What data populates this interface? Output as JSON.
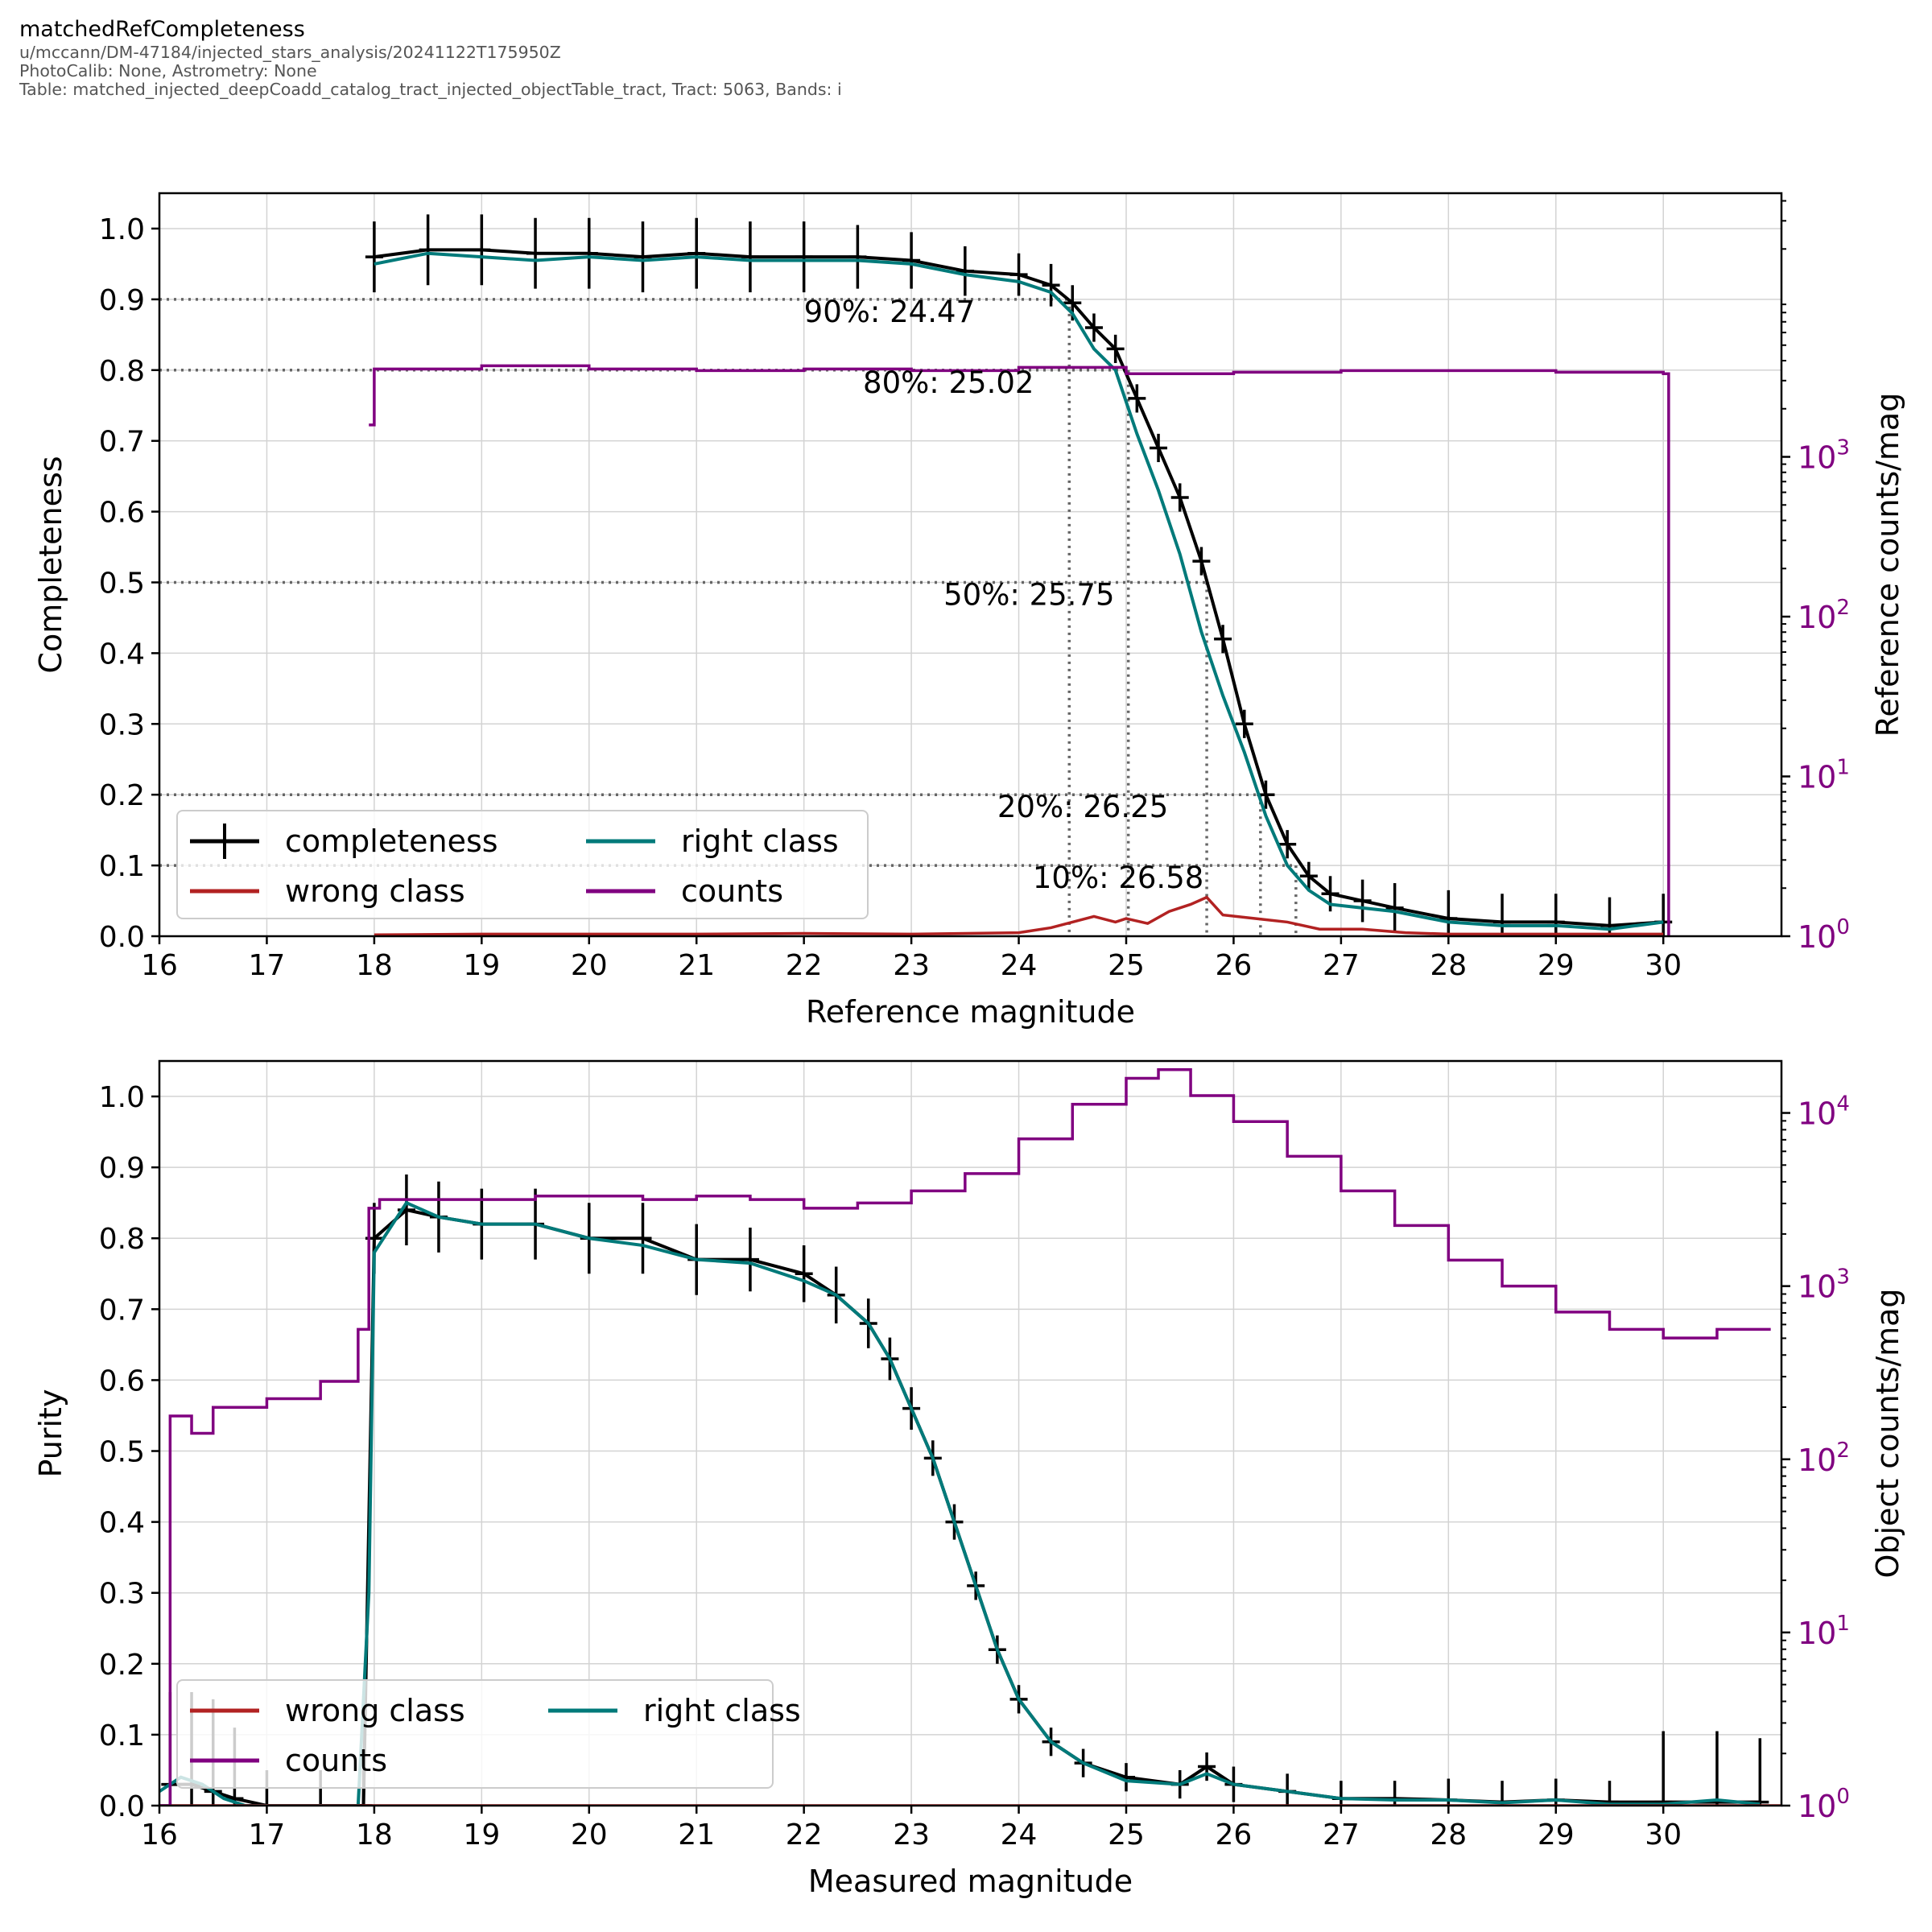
{
  "header": {
    "title": "matchedRefCompleteness",
    "lines": [
      "u/mccann/DM-47184/injected_stars_analysis/20241122T175950Z",
      "PhotoCalib: None, Astrometry: None",
      "Table: matched_injected_deepCoadd_catalog_tract_injected_objectTable_tract, Tract: 5063, Bands: i"
    ]
  },
  "colors": {
    "completeness": "#000000",
    "right_class": "#007a7a",
    "wrong_class": "#b22222",
    "counts": "#800080",
    "threshold": "#666666",
    "grid": "#d3d3d3"
  },
  "chart_data": [
    {
      "type": "line",
      "xlabel": "Reference magnitude",
      "ylabel": "Completeness",
      "y2label": "Reference counts/mag",
      "xlim": [
        16,
        31.1
      ],
      "ylim": [
        0,
        1.05
      ],
      "y2lim_log10": [
        0,
        4.65
      ],
      "y2scale": "log",
      "xticks": [
        16,
        17,
        18,
        19,
        20,
        21,
        22,
        23,
        24,
        25,
        26,
        27,
        28,
        29,
        30
      ],
      "yticks": [
        0.0,
        0.1,
        0.2,
        0.3,
        0.4,
        0.5,
        0.6,
        0.7,
        0.8,
        0.9,
        1.0
      ],
      "y2ticks": [
        {
          "exp": "0",
          "log": 0
        },
        {
          "exp": "1",
          "log": 1
        },
        {
          "exp": "2",
          "log": 2
        },
        {
          "exp": "3",
          "log": 3
        }
      ],
      "grid": true,
      "legend": {
        "position": "lower-left",
        "columns": 2,
        "order": [
          "completeness",
          "right class",
          "wrong class",
          "counts"
        ]
      },
      "thresholds": [
        {
          "level": 0.9,
          "mag": 24.47,
          "label": "90%: 24.47",
          "label_x": 22.0
        },
        {
          "level": 0.8,
          "mag": 25.02,
          "label": "80%: 25.02",
          "label_x": 22.55
        },
        {
          "level": 0.5,
          "mag": 25.75,
          "label": "50%: 25.75",
          "label_x": 23.3
        },
        {
          "level": 0.2,
          "mag": 26.25,
          "label": "20%: 26.25",
          "label_x": 23.8
        },
        {
          "level": 0.1,
          "mag": 26.58,
          "label": "10%: 26.58",
          "label_x": 24.13
        }
      ],
      "series": [
        {
          "name": "completeness",
          "style": "errorbar",
          "x": [
            18.0,
            18.5,
            19.0,
            19.5,
            20.0,
            20.5,
            21.0,
            21.5,
            22.0,
            22.5,
            23.0,
            23.5,
            24.0,
            24.3,
            24.5,
            24.7,
            24.9,
            25.1,
            25.3,
            25.5,
            25.7,
            25.9,
            26.1,
            26.3,
            26.5,
            26.7,
            26.9,
            27.2,
            27.5,
            28.0,
            28.5,
            29.0,
            29.5,
            30.0
          ],
          "y": [
            0.96,
            0.97,
            0.97,
            0.965,
            0.965,
            0.96,
            0.965,
            0.96,
            0.96,
            0.96,
            0.955,
            0.94,
            0.935,
            0.92,
            0.895,
            0.86,
            0.83,
            0.76,
            0.69,
            0.62,
            0.53,
            0.42,
            0.3,
            0.2,
            0.13,
            0.085,
            0.06,
            0.05,
            0.04,
            0.025,
            0.02,
            0.02,
            0.015,
            0.02
          ],
          "yerr": [
            0.05,
            0.05,
            0.05,
            0.05,
            0.05,
            0.05,
            0.05,
            0.05,
            0.05,
            0.045,
            0.04,
            0.035,
            0.03,
            0.03,
            0.025,
            0.02,
            0.02,
            0.02,
            0.02,
            0.02,
            0.02,
            0.02,
            0.02,
            0.02,
            0.02,
            0.02,
            0.025,
            0.03,
            0.035,
            0.04,
            0.04,
            0.04,
            0.04,
            0.04
          ]
        },
        {
          "name": "right class",
          "style": "line",
          "x": [
            18.0,
            18.5,
            19.0,
            19.5,
            20.0,
            20.5,
            21.0,
            21.5,
            22.0,
            22.5,
            23.0,
            23.5,
            24.0,
            24.3,
            24.5,
            24.7,
            24.9,
            25.1,
            25.3,
            25.5,
            25.7,
            25.9,
            26.1,
            26.3,
            26.5,
            26.7,
            26.9,
            27.2,
            27.5,
            28.0,
            28.5,
            29.0,
            29.5,
            30.0
          ],
          "y": [
            0.95,
            0.965,
            0.96,
            0.955,
            0.96,
            0.955,
            0.96,
            0.955,
            0.955,
            0.955,
            0.95,
            0.935,
            0.925,
            0.91,
            0.88,
            0.83,
            0.8,
            0.71,
            0.63,
            0.54,
            0.43,
            0.34,
            0.26,
            0.17,
            0.1,
            0.065,
            0.045,
            0.04,
            0.035,
            0.02,
            0.015,
            0.015,
            0.01,
            0.02
          ]
        },
        {
          "name": "wrong class",
          "style": "line",
          "x": [
            18.0,
            19.0,
            20.0,
            21.0,
            22.0,
            23.0,
            24.0,
            24.3,
            24.5,
            24.7,
            24.9,
            25.0,
            25.2,
            25.4,
            25.6,
            25.75,
            25.9,
            26.2,
            26.5,
            26.8,
            27.2,
            27.6,
            28.0,
            29.0,
            30.0
          ],
          "y": [
            0.002,
            0.003,
            0.003,
            0.003,
            0.004,
            0.003,
            0.005,
            0.012,
            0.02,
            0.028,
            0.02,
            0.025,
            0.018,
            0.035,
            0.045,
            0.055,
            0.03,
            0.025,
            0.02,
            0.01,
            0.01,
            0.005,
            0.003,
            0.003,
            0.003
          ]
        },
        {
          "name": "counts",
          "style": "step",
          "axis": "right",
          "x": [
            17.95,
            18.0,
            19.0,
            20.0,
            21.0,
            22.0,
            23.0,
            24.0,
            25.0,
            26.0,
            27.0,
            28.0,
            29.0,
            30.0,
            30.05
          ],
          "y_log10": [
            3.2,
            3.55,
            3.57,
            3.55,
            3.54,
            3.55,
            3.54,
            3.56,
            3.52,
            3.53,
            3.54,
            3.54,
            3.53,
            3.52,
            0
          ]
        }
      ]
    },
    {
      "type": "line",
      "xlabel": "Measured magnitude",
      "ylabel": "Purity",
      "y2label": "Object counts/mag",
      "xlim": [
        16,
        31.1
      ],
      "ylim": [
        0,
        1.05
      ],
      "y2lim_log10": [
        0,
        4.3
      ],
      "y2scale": "log",
      "xticks": [
        16,
        17,
        18,
        19,
        20,
        21,
        22,
        23,
        24,
        25,
        26,
        27,
        28,
        29,
        30
      ],
      "yticks": [
        0.0,
        0.1,
        0.2,
        0.3,
        0.4,
        0.5,
        0.6,
        0.7,
        0.8,
        0.9,
        1.0
      ],
      "y2ticks": [
        {
          "exp": "0",
          "log": 0
        },
        {
          "exp": "1",
          "log": 1
        },
        {
          "exp": "2",
          "log": 2
        },
        {
          "exp": "3",
          "log": 3
        },
        {
          "exp": "4",
          "log": 4
        }
      ],
      "grid": true,
      "legend": {
        "position": "lower-left",
        "columns": 2,
        "order": [
          "wrong class",
          "right class",
          "counts"
        ]
      },
      "series": [
        {
          "name": "purity",
          "style": "errorbar",
          "x": [
            16.1,
            16.3,
            16.5,
            16.7,
            17.0,
            17.5,
            17.9,
            18.0,
            18.3,
            18.6,
            19.0,
            19.5,
            20.0,
            20.5,
            21.0,
            21.5,
            22.0,
            22.3,
            22.6,
            22.8,
            23.0,
            23.2,
            23.4,
            23.6,
            23.8,
            24.0,
            24.3,
            24.6,
            25.0,
            25.5,
            25.75,
            26.0,
            26.5,
            27.0,
            27.5,
            28.0,
            28.5,
            29.0,
            29.5,
            30.0,
            30.5,
            30.9
          ],
          "y": [
            0.03,
            0.03,
            0.02,
            0.01,
            0.0,
            0.0,
            0.0,
            0.8,
            0.84,
            0.83,
            0.82,
            0.82,
            0.8,
            0.8,
            0.77,
            0.77,
            0.75,
            0.72,
            0.68,
            0.63,
            0.56,
            0.49,
            0.4,
            0.31,
            0.22,
            0.15,
            0.09,
            0.06,
            0.04,
            0.03,
            0.055,
            0.03,
            0.02,
            0.01,
            0.01,
            0.008,
            0.005,
            0.008,
            0.005,
            0.005,
            0.005,
            0.005
          ],
          "yerr": [
            0.13,
            0.13,
            0.13,
            0.1,
            0.05,
            0.05,
            0.05,
            0.05,
            0.05,
            0.05,
            0.05,
            0.05,
            0.05,
            0.05,
            0.05,
            0.045,
            0.04,
            0.04,
            0.035,
            0.03,
            0.03,
            0.025,
            0.025,
            0.02,
            0.02,
            0.02,
            0.02,
            0.02,
            0.02,
            0.02,
            0.02,
            0.025,
            0.025,
            0.025,
            0.025,
            0.03,
            0.03,
            0.03,
            0.03,
            0.1,
            0.1,
            0.09
          ]
        },
        {
          "name": "right class",
          "style": "line",
          "x": [
            16.0,
            16.2,
            16.4,
            16.6,
            16.8,
            17.0,
            17.5,
            17.85,
            17.95,
            18.0,
            18.3,
            18.6,
            19.0,
            19.5,
            20.0,
            20.5,
            21.0,
            21.5,
            22.0,
            22.3,
            22.6,
            22.8,
            23.0,
            23.2,
            23.4,
            23.6,
            23.8,
            24.0,
            24.3,
            24.6,
            25.0,
            25.5,
            25.75,
            26.0,
            26.5,
            27.0,
            27.5,
            28.0,
            28.5,
            29.0,
            29.5,
            30.0,
            30.5,
            30.9
          ],
          "y": [
            0.02,
            0.04,
            0.03,
            0.01,
            0.0,
            0.0,
            0.0,
            0.0,
            0.3,
            0.78,
            0.85,
            0.83,
            0.82,
            0.82,
            0.8,
            0.79,
            0.77,
            0.765,
            0.74,
            0.72,
            0.68,
            0.63,
            0.56,
            0.49,
            0.4,
            0.31,
            0.22,
            0.15,
            0.09,
            0.06,
            0.035,
            0.03,
            0.045,
            0.03,
            0.02,
            0.01,
            0.008,
            0.008,
            0.004,
            0.008,
            0.002,
            0.002,
            0.008,
            0.002
          ]
        },
        {
          "name": "wrong class",
          "style": "line",
          "x": [
            16.0,
            31.1
          ],
          "y": [
            0.0,
            0.0
          ]
        },
        {
          "name": "counts",
          "style": "step",
          "axis": "right",
          "x": [
            16.0,
            16.1,
            16.3,
            16.5,
            17.0,
            17.5,
            17.85,
            17.95,
            18.05,
            18.5,
            19.0,
            19.5,
            20.0,
            20.5,
            21.0,
            21.5,
            22.0,
            22.5,
            23.0,
            23.5,
            24.0,
            24.5,
            25.0,
            25.3,
            25.6,
            26.0,
            26.5,
            27.0,
            27.5,
            28.0,
            28.5,
            29.0,
            29.5,
            30.0,
            30.5,
            31.0
          ],
          "y_log10": [
            0,
            2.25,
            2.15,
            2.3,
            2.35,
            2.45,
            2.75,
            3.45,
            3.5,
            3.5,
            3.5,
            3.52,
            3.52,
            3.5,
            3.52,
            3.5,
            3.45,
            3.48,
            3.55,
            3.65,
            3.85,
            4.05,
            4.2,
            4.25,
            4.1,
            3.95,
            3.75,
            3.55,
            3.35,
            3.15,
            3.0,
            2.85,
            2.75,
            2.7,
            2.75,
            2.75
          ]
        }
      ]
    }
  ]
}
